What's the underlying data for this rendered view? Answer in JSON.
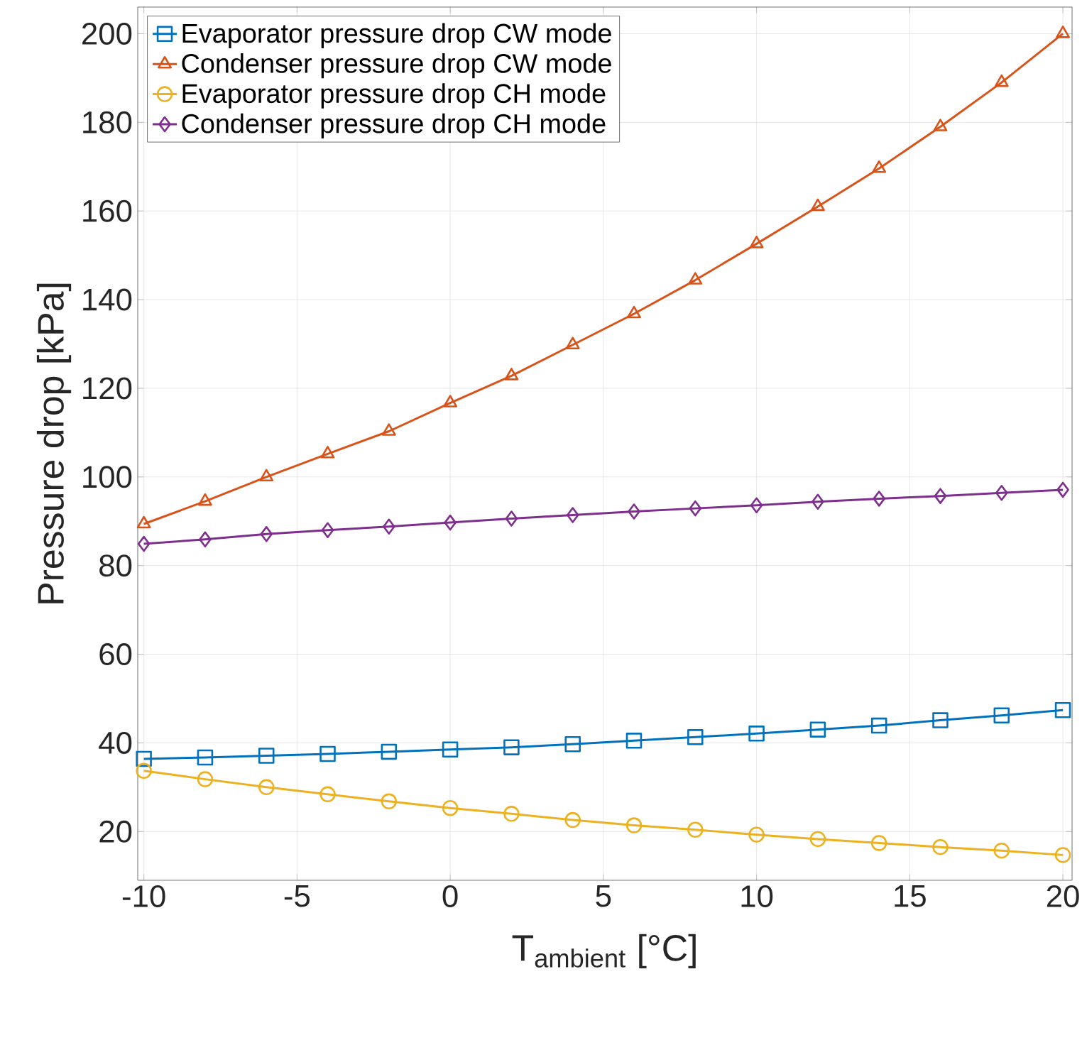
{
  "chart_data": {
    "type": "line",
    "xlabel": "T$_{ambient}$ [°C]",
    "ylabel": "Pressure drop  [kPa]",
    "x": [
      -10,
      -8,
      -6,
      -4,
      -2,
      0,
      2,
      4,
      6,
      8,
      10,
      12,
      14,
      16,
      18,
      20
    ],
    "series": [
      {
        "name": "Evaporator pressure drop CW mode",
        "color": "#0072bd",
        "marker": "square",
        "values": [
          36.4,
          36.7,
          37.1,
          37.5,
          38.0,
          38.5,
          39.0,
          39.7,
          40.5,
          41.3,
          42.1,
          43.0,
          43.9,
          45.1,
          46.2,
          47.4
        ]
      },
      {
        "name": "Condenser pressure drop CW mode",
        "color": "#d95319",
        "marker": "triangle",
        "values": [
          89.4,
          94.5,
          100,
          105.2,
          110.3,
          116.7,
          122.8,
          129.8,
          136.8,
          144.4,
          152.6,
          161,
          169.6,
          179,
          189,
          200
        ]
      },
      {
        "name": "Evaporator pressure drop CH mode",
        "color": "#edb120",
        "marker": "circle",
        "values": [
          33.7,
          31.8,
          30.0,
          28.4,
          26.8,
          25.3,
          24.0,
          22.6,
          21.4,
          20.4,
          19.3,
          18.3,
          17.4,
          16.5,
          15.7,
          14.7
        ]
      },
      {
        "name": "Condenser pressure drop CH mode",
        "color": "#7e2f8e",
        "marker": "diamond",
        "values": [
          84.9,
          85.9,
          87.1,
          88.0,
          88.8,
          89.7,
          90.6,
          91.4,
          92.2,
          92.9,
          93.6,
          94.4,
          95.1,
          95.7,
          96.4,
          97.1
        ]
      }
    ],
    "xlim": [
      -10.2,
      20.3
    ],
    "ylim": [
      9,
      206
    ],
    "xticks": [
      -10,
      -5,
      0,
      5,
      10,
      15,
      20
    ],
    "yticks": [
      20,
      40,
      60,
      80,
      100,
      120,
      140,
      160,
      180,
      200
    ],
    "grid": true,
    "legend": "top left",
    "line_style": "solid"
  }
}
